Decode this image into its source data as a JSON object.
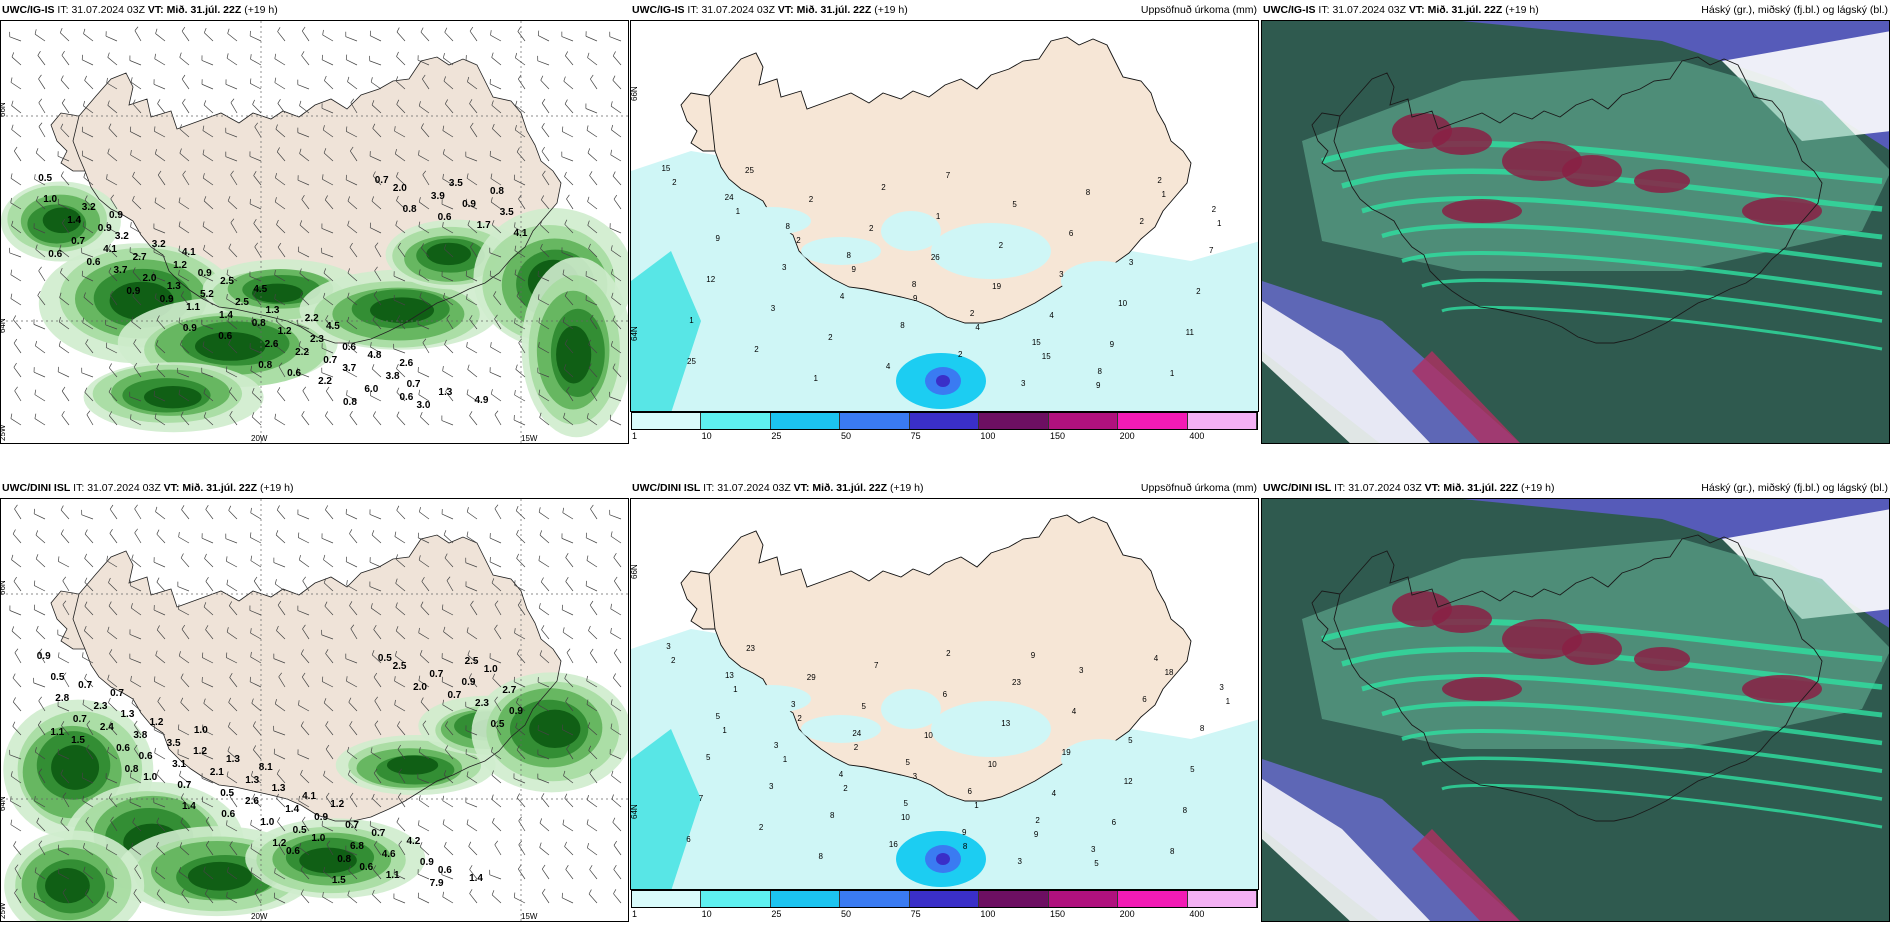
{
  "panels": [
    {
      "model": "UWC/IG-IS",
      "it_label": "IT:",
      "it": "31.07.2024 03Z",
      "vt_label": "VT:",
      "vt": "Mið. 31.júl. 22Z",
      "lead": "(+19 h)",
      "title": ""
    },
    {
      "model": "UWC/IG-IS",
      "it_label": "IT:",
      "it": "31.07.2024 03Z",
      "vt_label": "VT:",
      "vt": "Mið. 31.júl. 22Z",
      "lead": "(+19 h)",
      "title": "Uppsöfnuð úrkoma (mm)"
    },
    {
      "model": "UWC/IG-IS",
      "it_label": "IT:",
      "it": "31.07.2024 03Z",
      "vt_label": "VT:",
      "vt": "Mið. 31.júl. 22Z",
      "lead": "(+19 h)",
      "title": "Háský (gr.), miðský (fj.bl.) og lágský (bl.)"
    },
    {
      "model": "UWC/DINI ISL",
      "it_label": "IT:",
      "it": "31.07.2024 03Z",
      "vt_label": "VT:",
      "vt": "Mið. 31.júl. 22Z",
      "lead": "(+19 h)",
      "title": ""
    },
    {
      "model": "UWC/DINI ISL",
      "it_label": "IT:",
      "it": "31.07.2024 03Z",
      "vt_label": "VT:",
      "vt": "Mið. 31.júl. 22Z",
      "lead": "(+19 h)",
      "title": "Uppsöfnuð úrkoma (mm)"
    },
    {
      "model": "UWC/DINI ISL",
      "it_label": "IT:",
      "it": "31.07.2024 03Z",
      "vt_label": "VT:",
      "vt": "Mið. 31.júl. 22Z",
      "lead": "(+19 h)",
      "title": "Háský (gr.), miðský (fj.bl.) og lágský (bl.)"
    }
  ],
  "axis_labels": {
    "lat66": "66N",
    "lat64": "64N",
    "lon25": "25W",
    "lon20": "20W",
    "lon15": "15W"
  },
  "legend": {
    "ticks": [
      "1",
      "10",
      "25",
      "50",
      "75",
      "100",
      "150",
      "200",
      "400"
    ],
    "colors": [
      "#d9fbfb",
      "#5ef0f0",
      "#1cc4f0",
      "#3a7bf2",
      "#3a2fc8",
      "#6d0f62",
      "#b0117e",
      "#f21bb5",
      "#f4b1f4"
    ]
  },
  "top_precip_numbers": [
    "0.5",
    "0.9",
    "4.1",
    "4.5",
    "4.5",
    "2.6",
    "4.9",
    "3.2",
    "3.2",
    "2.5",
    "2.2",
    "4.8",
    "1.3",
    "1.0",
    "3.2",
    "0.9",
    "1.3",
    "0.6",
    "0.7",
    "0.8",
    "0.9",
    "1.2",
    "2.5",
    "2.3",
    "3.8",
    "3.5",
    "1.4",
    "2.7",
    "5.2",
    "1.2",
    "3.7",
    "3.0",
    "3.5",
    "4.1",
    "1.3",
    "0.8",
    "0.7",
    "0.6",
    "0.9",
    "0.7",
    "2.0",
    "1.4",
    "2.2",
    "6.0",
    "3.9",
    "4.1",
    "3.7",
    "1.1",
    "2.6",
    "2.2",
    "2.0",
    "1.7",
    "0.6",
    "0.9",
    "0.6",
    "0.6",
    "0.7",
    "0.6",
    "0.6",
    "0.9",
    "0.9",
    "0.8",
    "0.8",
    "0.8"
  ],
  "bottom_precip_numbers": [
    "0.9",
    "0.7",
    "1.0",
    "8.1",
    "1.2",
    "4.2",
    "1.4",
    "0.7",
    "1.2",
    "1.3",
    "4.1",
    "0.7",
    "0.6",
    "0.5",
    "1.3",
    "1.2",
    "1.3",
    "0.7",
    "0.9",
    "1.0",
    "2.3",
    "3.5",
    "1.3",
    "0.9",
    "4.6",
    "2.5",
    "2.8",
    "3.8",
    "2.1",
    "1.4",
    "6.8",
    "7.9",
    "2.7",
    "2.4",
    "3.1",
    "2.6",
    "1.0",
    "1.1",
    "0.9",
    "0.7",
    "0.6",
    "0.5",
    "0.5",
    "0.6",
    "0.7",
    "0.9",
    "0.6",
    "0.7",
    "1.0",
    "0.8",
    "2.5",
    "2.3",
    "1.5",
    "1.0",
    "0.6",
    "0.6",
    "0.5",
    "0.7",
    "1.1",
    "0.8",
    "1.4",
    "1.2",
    "1.5",
    "2.0",
    "0.5"
  ],
  "top_accum_numbers": [
    "15",
    "24",
    "8",
    "8",
    "8",
    "2",
    "15",
    "8",
    "2",
    "2",
    "9",
    "3",
    "4",
    "8",
    "2",
    "3",
    "8",
    "2",
    "7",
    "12",
    "3",
    "2",
    "4",
    "7",
    "5",
    "6",
    "3",
    "2",
    "1",
    "2",
    "1",
    "2",
    "1",
    "2",
    "3",
    "10",
    "11",
    "25",
    "25",
    "2",
    "2",
    "26",
    "19",
    "4",
    "9",
    "1",
    "2",
    "1",
    "2",
    "9",
    "9",
    "4",
    "15",
    "9",
    "1",
    "1"
  ],
  "bottom_accum_numbers": [
    "3",
    "13",
    "3",
    "24",
    "5",
    "6",
    "2",
    "3",
    "4",
    "3",
    "5",
    "3",
    "4",
    "5",
    "9",
    "3",
    "3",
    "6",
    "8",
    "5",
    "3",
    "8",
    "16",
    "2",
    "23",
    "4",
    "5",
    "5",
    "7",
    "2",
    "8",
    "7",
    "6",
    "13",
    "19",
    "12",
    "8",
    "6",
    "23",
    "29",
    "5",
    "10",
    "10",
    "4",
    "6",
    "8",
    "2",
    "1",
    "2",
    "2",
    "3",
    "1",
    "9",
    "5",
    "18",
    "1",
    "1",
    "1",
    "2",
    "10",
    "8",
    "9"
  ]
}
